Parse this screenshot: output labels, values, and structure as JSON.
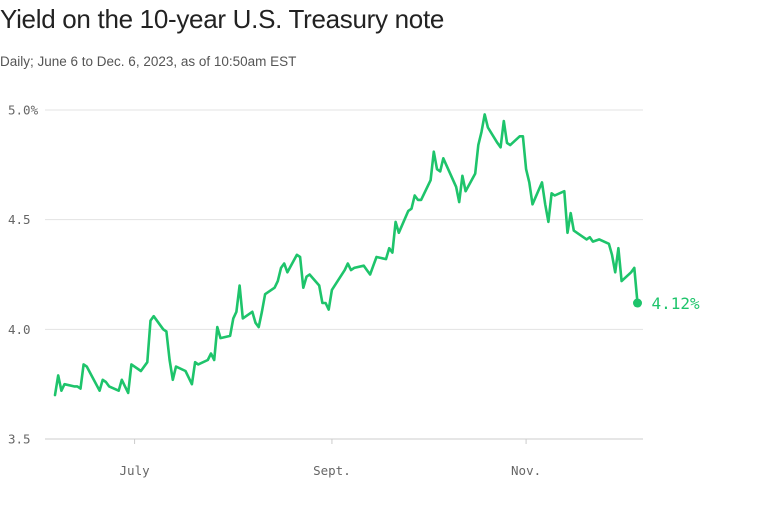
{
  "header": {
    "title": "Yield on the 10-year U.S. Treasury note",
    "subtitle": "Daily; June 6 to Dec. 6, 2023, as of 10:50am EST"
  },
  "colors": {
    "line": "#1ec46b",
    "grid": "#e3e3e3",
    "axis": "#cccccc"
  },
  "chart_data": {
    "type": "line",
    "title": "Yield on the 10-year U.S. Treasury note",
    "xlabel": "",
    "ylabel": "",
    "ylim": [
      3.5,
      5.0
    ],
    "y_ticks": [
      {
        "value": 5.0,
        "label": "5.0%"
      },
      {
        "value": 4.5,
        "label": "4.5"
      },
      {
        "value": 4.0,
        "label": "4.0"
      },
      {
        "value": 3.5,
        "label": "3.5"
      }
    ],
    "x_ticks": [
      {
        "value": "2023-07-01",
        "label": "July"
      },
      {
        "value": "2023-09-01",
        "label": "Sept."
      },
      {
        "value": "2023-11-01",
        "label": "Nov."
      }
    ],
    "xlim": [
      "2023-06-06",
      "2023-12-08"
    ],
    "grid": true,
    "end_label": "4.12%",
    "series": [
      {
        "x": [
          "2023-06-06",
          "2023-06-07",
          "2023-06-08",
          "2023-06-09",
          "2023-06-12",
          "2023-06-13",
          "2023-06-14",
          "2023-06-15",
          "2023-06-16",
          "2023-06-20",
          "2023-06-21",
          "2023-06-22",
          "2023-06-23",
          "2023-06-26",
          "2023-06-27",
          "2023-06-28",
          "2023-06-29",
          "2023-06-30",
          "2023-07-03",
          "2023-07-05",
          "2023-07-06",
          "2023-07-07",
          "2023-07-10",
          "2023-07-11",
          "2023-07-12",
          "2023-07-13",
          "2023-07-14",
          "2023-07-17",
          "2023-07-18",
          "2023-07-19",
          "2023-07-20",
          "2023-07-21",
          "2023-07-24",
          "2023-07-25",
          "2023-07-26",
          "2023-07-27",
          "2023-07-28",
          "2023-07-31",
          "2023-08-01",
          "2023-08-02",
          "2023-08-03",
          "2023-08-04",
          "2023-08-07",
          "2023-08-08",
          "2023-08-09",
          "2023-08-10",
          "2023-08-11",
          "2023-08-14",
          "2023-08-15",
          "2023-08-16",
          "2023-08-17",
          "2023-08-18",
          "2023-08-21",
          "2023-08-22",
          "2023-08-23",
          "2023-08-24",
          "2023-08-25",
          "2023-08-28",
          "2023-08-29",
          "2023-08-30",
          "2023-08-31",
          "2023-09-01",
          "2023-09-05",
          "2023-09-06",
          "2023-09-07",
          "2023-09-08",
          "2023-09-11",
          "2023-09-12",
          "2023-09-13",
          "2023-09-14",
          "2023-09-15",
          "2023-09-18",
          "2023-09-19",
          "2023-09-20",
          "2023-09-21",
          "2023-09-22",
          "2023-09-25",
          "2023-09-26",
          "2023-09-27",
          "2023-09-28",
          "2023-09-29",
          "2023-10-02",
          "2023-10-03",
          "2023-10-04",
          "2023-10-05",
          "2023-10-06",
          "2023-10-10",
          "2023-10-11",
          "2023-10-12",
          "2023-10-13",
          "2023-10-16",
          "2023-10-17",
          "2023-10-18",
          "2023-10-19",
          "2023-10-20",
          "2023-10-23",
          "2023-10-24",
          "2023-10-25",
          "2023-10-26",
          "2023-10-27",
          "2023-10-30",
          "2023-10-31",
          "2023-11-01",
          "2023-11-02",
          "2023-11-03",
          "2023-11-06",
          "2023-11-07",
          "2023-11-08",
          "2023-11-09",
          "2023-11-10",
          "2023-11-13",
          "2023-11-14",
          "2023-11-15",
          "2023-11-16",
          "2023-11-17",
          "2023-11-20",
          "2023-11-21",
          "2023-11-22",
          "2023-11-24",
          "2023-11-27",
          "2023-11-28",
          "2023-11-29",
          "2023-11-30",
          "2023-12-01",
          "2023-12-04",
          "2023-12-05",
          "2023-12-06"
        ],
        "y": [
          3.7,
          3.79,
          3.72,
          3.75,
          3.74,
          3.74,
          3.73,
          3.84,
          3.83,
          3.72,
          3.77,
          3.76,
          3.74,
          3.72,
          3.77,
          3.74,
          3.71,
          3.84,
          3.81,
          3.85,
          4.04,
          4.06,
          4.0,
          3.99,
          3.86,
          3.77,
          3.83,
          3.81,
          3.78,
          3.75,
          3.85,
          3.84,
          3.86,
          3.89,
          3.86,
          4.01,
          3.96,
          3.97,
          4.05,
          4.08,
          4.2,
          4.05,
          4.08,
          4.03,
          4.01,
          4.08,
          4.16,
          4.19,
          4.22,
          4.28,
          4.3,
          4.26,
          4.34,
          4.33,
          4.19,
          4.24,
          4.25,
          4.2,
          4.12,
          4.12,
          4.09,
          4.18,
          4.27,
          4.3,
          4.27,
          4.28,
          4.29,
          4.27,
          4.25,
          4.29,
          4.33,
          4.32,
          4.37,
          4.35,
          4.49,
          4.44,
          4.54,
          4.55,
          4.61,
          4.59,
          4.59,
          4.68,
          4.81,
          4.73,
          4.72,
          4.78,
          4.65,
          4.58,
          4.7,
          4.63,
          4.71,
          4.84,
          4.9,
          4.98,
          4.92,
          4.85,
          4.83,
          4.95,
          4.85,
          4.84,
          4.88,
          4.88,
          4.73,
          4.67,
          4.57,
          4.67,
          4.57,
          4.49,
          4.62,
          4.61,
          4.63,
          4.44,
          4.53,
          4.45,
          4.44,
          4.41,
          4.42,
          4.4,
          4.41,
          4.39,
          4.34,
          4.26,
          4.37,
          4.22,
          4.26,
          4.28,
          4.12
        ]
      }
    ]
  }
}
